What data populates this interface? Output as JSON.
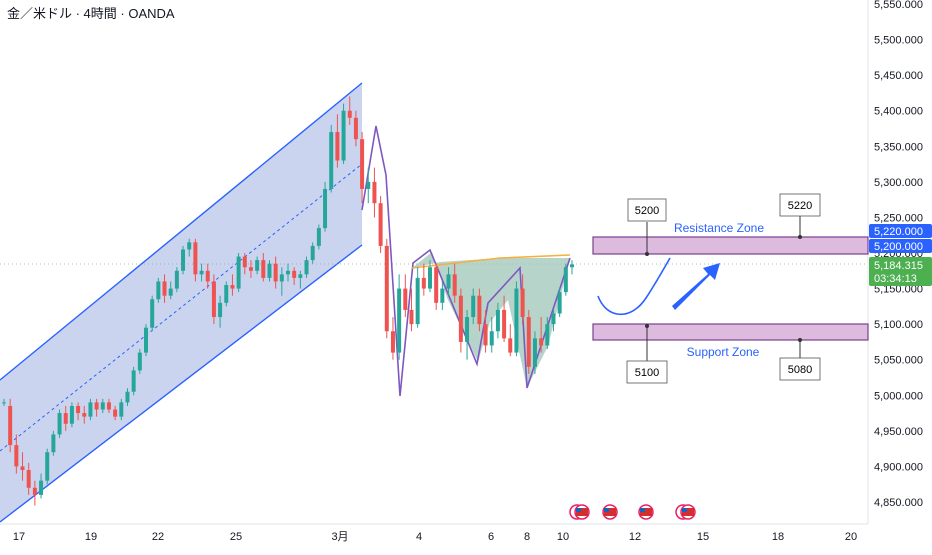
{
  "header": {
    "symbol_title": "金／米ドル · 4時間 · OANDA"
  },
  "colors": {
    "up": "#26a69a",
    "down": "#ef5350",
    "channel_fill": "#b9c6ea",
    "channel_line": "#2962ff",
    "zone_fill": "#d8b4dc",
    "zone_line": "#7b3f8f",
    "pattern_fill": "#9fc5b8",
    "pattern_line": "#7e57c2",
    "neckline": "#f5b041",
    "arrow": "#2962ff",
    "price_tag": "#2962ff",
    "last_price_tag": "#4caf50"
  },
  "chart_data": {
    "type": "candlestick",
    "title": "金／米ドル · 4時間 · OANDA",
    "ylim": [
      4830,
      5560
    ],
    "y_ticks": [
      "5,550.000",
      "5,500.000",
      "5,450.000",
      "5,400.000",
      "5,350.000",
      "5,300.000",
      "5,250.000",
      "5,200.000",
      "5,150.000",
      "5,100.000",
      "5,050.000",
      "5,000.000",
      "4,950.000",
      "4,900.000",
      "4,850.000"
    ],
    "x_ticks": [
      "17",
      "19",
      "22",
      "25",
      "3月",
      "4",
      "6",
      "8",
      "10",
      "12",
      "15",
      "18",
      "20"
    ],
    "price_tags": {
      "level_1": "5,220.000",
      "level_2": "5,200.000",
      "last_price": "5,184.315",
      "countdown": "03:34:13"
    },
    "candles_ohlc": [
      [
        4990,
        4995,
        4985,
        4990
      ],
      [
        4985,
        4995,
        4920,
        4930
      ],
      [
        4930,
        4945,
        4890,
        4900
      ],
      [
        4900,
        4920,
        4880,
        4895
      ],
      [
        4895,
        4905,
        4860,
        4870
      ],
      [
        4870,
        4880,
        4845,
        4860
      ],
      [
        4860,
        4890,
        4855,
        4880
      ],
      [
        4880,
        4925,
        4875,
        4920
      ],
      [
        4920,
        4950,
        4915,
        4945
      ],
      [
        4945,
        4980,
        4940,
        4975
      ],
      [
        4975,
        4985,
        4950,
        4960
      ],
      [
        4960,
        4990,
        4955,
        4985
      ],
      [
        4985,
        4990,
        4965,
        4975
      ],
      [
        4975,
        4985,
        4960,
        4970
      ],
      [
        4970,
        4995,
        4965,
        4990
      ],
      [
        4990,
        4995,
        4970,
        4980
      ],
      [
        4980,
        4995,
        4975,
        4990
      ],
      [
        4990,
        4995,
        4975,
        4980
      ],
      [
        4980,
        4985,
        4965,
        4970
      ],
      [
        4970,
        4995,
        4965,
        4990
      ],
      [
        4990,
        5010,
        4985,
        5005
      ],
      [
        5005,
        5040,
        5000,
        5035
      ],
      [
        5035,
        5065,
        5030,
        5060
      ],
      [
        5060,
        5100,
        5055,
        5095
      ],
      [
        5095,
        5140,
        5090,
        5135
      ],
      [
        5135,
        5165,
        5130,
        5160
      ],
      [
        5160,
        5170,
        5130,
        5140
      ],
      [
        5140,
        5160,
        5135,
        5150
      ],
      [
        5150,
        5180,
        5145,
        5175
      ],
      [
        5175,
        5210,
        5170,
        5205
      ],
      [
        5205,
        5220,
        5195,
        5215
      ],
      [
        5215,
        5220,
        5160,
        5170
      ],
      [
        5170,
        5185,
        5160,
        5175
      ],
      [
        5175,
        5185,
        5150,
        5160
      ],
      [
        5160,
        5170,
        5100,
        5110
      ],
      [
        5110,
        5140,
        5095,
        5130
      ],
      [
        5130,
        5160,
        5125,
        5155
      ],
      [
        5155,
        5170,
        5140,
        5150
      ],
      [
        5150,
        5200,
        5145,
        5195
      ],
      [
        5195,
        5200,
        5170,
        5180
      ],
      [
        5180,
        5190,
        5165,
        5175
      ],
      [
        5175,
        5195,
        5170,
        5190
      ],
      [
        5190,
        5200,
        5160,
        5165
      ],
      [
        5165,
        5190,
        5160,
        5185
      ],
      [
        5185,
        5195,
        5150,
        5160
      ],
      [
        5160,
        5180,
        5140,
        5170
      ],
      [
        5170,
        5185,
        5160,
        5175
      ],
      [
        5175,
        5180,
        5155,
        5165
      ],
      [
        5165,
        5175,
        5150,
        5170
      ],
      [
        5170,
        5195,
        5165,
        5190
      ],
      [
        5190,
        5215,
        5185,
        5210
      ],
      [
        5210,
        5240,
        5205,
        5235
      ],
      [
        5235,
        5300,
        5230,
        5290
      ],
      [
        5290,
        5380,
        5285,
        5370
      ],
      [
        5370,
        5395,
        5320,
        5330
      ],
      [
        5330,
        5410,
        5325,
        5400
      ],
      [
        5400,
        5420,
        5380,
        5390
      ],
      [
        5390,
        5400,
        5350,
        5360
      ],
      [
        5360,
        5370,
        5270,
        5290
      ],
      [
        5290,
        5320,
        5270,
        5300
      ],
      [
        5300,
        5320,
        5250,
        5270
      ],
      [
        5270,
        5280,
        5200,
        5210
      ],
      [
        5210,
        5220,
        5080,
        5090
      ],
      [
        5090,
        5110,
        5050,
        5060
      ],
      [
        5060,
        5170,
        5050,
        5150
      ],
      [
        5150,
        5170,
        5110,
        5120
      ],
      [
        5120,
        5150,
        5090,
        5100
      ],
      [
        5100,
        5180,
        5095,
        5165
      ],
      [
        5165,
        5185,
        5140,
        5150
      ],
      [
        5150,
        5190,
        5145,
        5180
      ],
      [
        5180,
        5185,
        5120,
        5130
      ],
      [
        5130,
        5160,
        5120,
        5150
      ],
      [
        5150,
        5180,
        5140,
        5170
      ],
      [
        5170,
        5185,
        5130,
        5140
      ],
      [
        5140,
        5150,
        5060,
        5075
      ],
      [
        5075,
        5120,
        5050,
        5110
      ],
      [
        5110,
        5150,
        5100,
        5140
      ],
      [
        5140,
        5150,
        5090,
        5100
      ],
      [
        5100,
        5120,
        5060,
        5070
      ],
      [
        5070,
        5110,
        5060,
        5090
      ],
      [
        5090,
        5130,
        5080,
        5120
      ],
      [
        5120,
        5140,
        5075,
        5080
      ],
      [
        5080,
        5100,
        5055,
        5060
      ],
      [
        5060,
        5160,
        5055,
        5150
      ],
      [
        5150,
        5170,
        5100,
        5110
      ],
      [
        5110,
        5120,
        5030,
        5040
      ],
      [
        5040,
        5090,
        5030,
        5080
      ],
      [
        5080,
        5110,
        5060,
        5070
      ],
      [
        5070,
        5110,
        5065,
        5100
      ],
      [
        5100,
        5120,
        5090,
        5115
      ],
      [
        5115,
        5150,
        5110,
        5145
      ],
      [
        5145,
        5185,
        5140,
        5180
      ],
      [
        5180,
        5190,
        5170,
        5184
      ]
    ],
    "annotations": {
      "resistance_label": "Resistance Zone",
      "support_label": "Support Zone",
      "callout_5200": "5200",
      "callout_5220": "5220",
      "callout_5100": "5100",
      "callout_5080": "5080"
    }
  }
}
